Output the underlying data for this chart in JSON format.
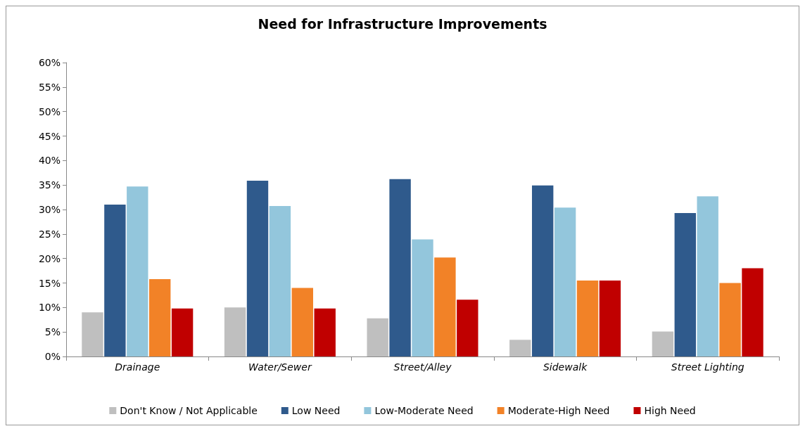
{
  "chart_data": {
    "type": "bar",
    "title": "Need for Infrastructure Improvements",
    "categories": [
      "Drainage",
      "Water/Sewer",
      "Street/Alley",
      "Sidewalk",
      "Street Lighting"
    ],
    "series": [
      {
        "name": "Don't Know / Not Applicable",
        "color": "#bfbfbf",
        "values": [
          9,
          10,
          7.8,
          3.4,
          5.1
        ]
      },
      {
        "name": "Low Need",
        "color": "#2f5a8c",
        "values": [
          31,
          35.9,
          36.2,
          34.9,
          29.3
        ]
      },
      {
        "name": "Low-Moderate Need",
        "color": "#93c6dc",
        "values": [
          34.7,
          30.7,
          23.9,
          30.4,
          32.7
        ]
      },
      {
        "name": "Moderate-High Need",
        "color": "#f28227",
        "values": [
          15.8,
          14,
          20.2,
          15.5,
          15
        ]
      },
      {
        "name": "High Need",
        "color": "#c00000",
        "values": [
          9.8,
          9.8,
          11.6,
          15.5,
          18
        ]
      }
    ],
    "ylim": [
      0,
      60
    ],
    "yticks": [
      {
        "value": 0,
        "label": "0%"
      },
      {
        "value": 5,
        "label": "5%"
      },
      {
        "value": 10,
        "label": "10%"
      },
      {
        "value": 15,
        "label": "15%"
      },
      {
        "value": 20,
        "label": "20%"
      },
      {
        "value": 25,
        "label": "25%"
      },
      {
        "value": 30,
        "label": "30%"
      },
      {
        "value": 35,
        "label": "35%"
      },
      {
        "value": 40,
        "label": "40%"
      },
      {
        "value": 45,
        "label": "45%"
      },
      {
        "value": 50,
        "label": "50%"
      },
      {
        "value": 55,
        "label": "55%"
      },
      {
        "value": 60,
        "label": "60%"
      }
    ],
    "grid": false,
    "legend": "bottom"
  }
}
